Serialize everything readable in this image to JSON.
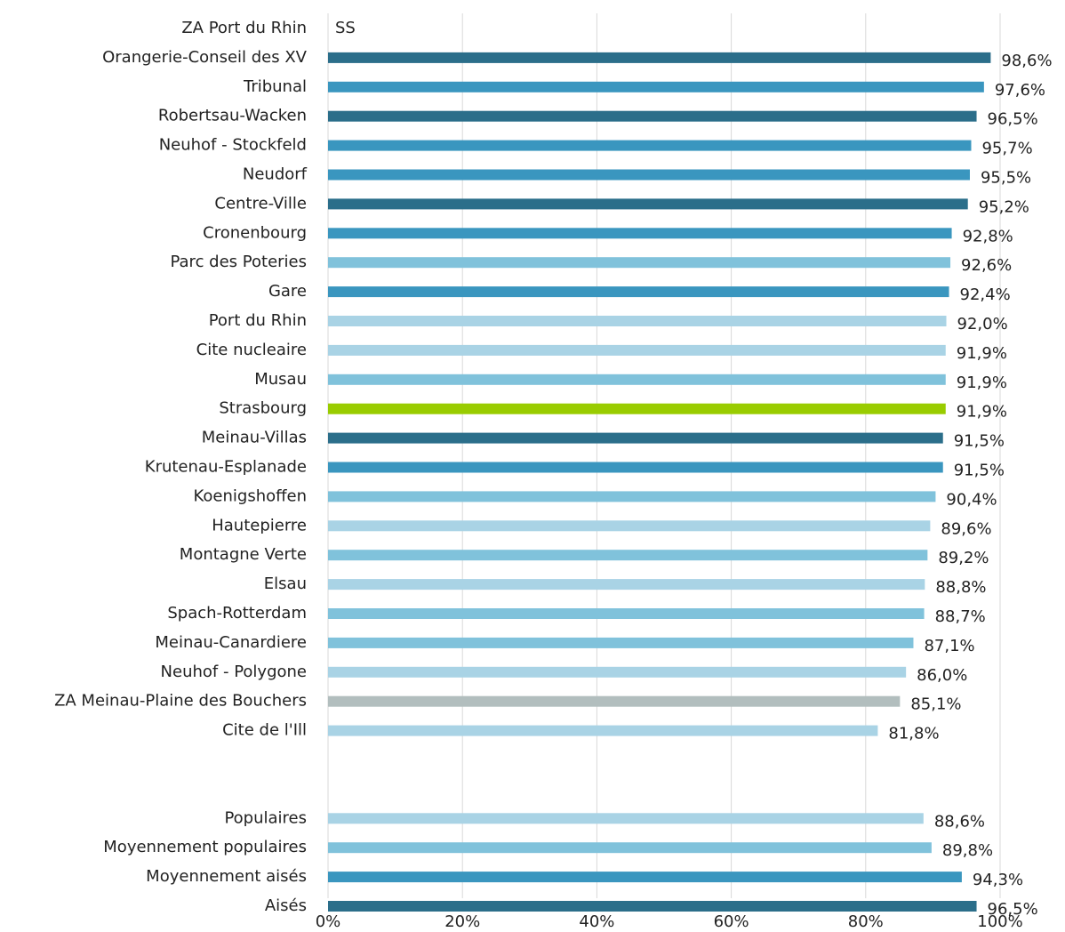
{
  "chart_data": {
    "type": "barh",
    "categories": [
      "ZA Port du Rhin",
      "Orangerie-Conseil des XV",
      "Tribunal",
      "Robertsau-Wacken",
      "Neuhof - Stockfeld",
      "Neudorf",
      "Centre-Ville",
      "Cronenbourg",
      "Parc des Poteries",
      "Gare",
      "Port du Rhin",
      "Cite nucleaire",
      "Musau",
      "Strasbourg",
      "Meinau-Villas",
      "Krutenau-Esplanade",
      "Koenigshoffen",
      "Hautepierre",
      "Montagne Verte",
      "Elsau",
      "Spach-Rotterdam",
      "Meinau-Canardiere",
      "Neuhof - Polygone",
      "ZA Meinau-Plaine des Bouchers",
      "Cite de l'Ill",
      null,
      null,
      "Populaires",
      "Moyennement populaires",
      "Moyennement aisés",
      "Aisés"
    ],
    "values": [
      null,
      98.6,
      97.6,
      96.5,
      95.7,
      95.5,
      95.2,
      92.8,
      92.6,
      92.4,
      92.0,
      91.9,
      91.9,
      91.9,
      91.5,
      91.5,
      90.4,
      89.6,
      89.2,
      88.8,
      88.7,
      87.1,
      86.0,
      85.1,
      81.8,
      null,
      null,
      88.6,
      89.8,
      94.3,
      96.5
    ],
    "value_labels": [
      "SS",
      "98,6%",
      "97,6%",
      "96,5%",
      "95,7%",
      "95,5%",
      "95,2%",
      "92,8%",
      "92,6%",
      "92,4%",
      "92,0%",
      "91,9%",
      "91,9%",
      "91,9%",
      "91,5%",
      "91,5%",
      "90,4%",
      "89,6%",
      "89,2%",
      "88,8%",
      "88,7%",
      "87,1%",
      "86,0%",
      "85,1%",
      "81,8%",
      null,
      null,
      "88,6%",
      "89,8%",
      "94,3%",
      "96,5%"
    ],
    "colors": [
      null,
      "#2b6e8a",
      "#3a96bf",
      "#2b6e8a",
      "#3a96bf",
      "#3a96bf",
      "#2b6e8a",
      "#3a96bf",
      "#80c2db",
      "#3a96bf",
      "#a9d3e5",
      "#a9d3e5",
      "#80c2db",
      "#99cc00",
      "#2b6e8a",
      "#3a96bf",
      "#80c2db",
      "#a9d3e5",
      "#80c2db",
      "#a9d3e5",
      "#80c2db",
      "#80c2db",
      "#a9d3e5",
      "#b2bebe",
      "#a9d3e5",
      null,
      null,
      "#a9d3e5",
      "#80c2db",
      "#3a96bf",
      "#2b6e8a"
    ],
    "xlim": [
      0,
      100
    ],
    "xticks": [
      {
        "value": 0,
        "label": "0%"
      },
      {
        "value": 20,
        "label": "20%"
      },
      {
        "value": 40,
        "label": "40%"
      },
      {
        "value": 60,
        "label": "60%"
      },
      {
        "value": 80,
        "label": "80%"
      },
      {
        "value": 100,
        "label": "100%"
      }
    ],
    "grid": true
  }
}
